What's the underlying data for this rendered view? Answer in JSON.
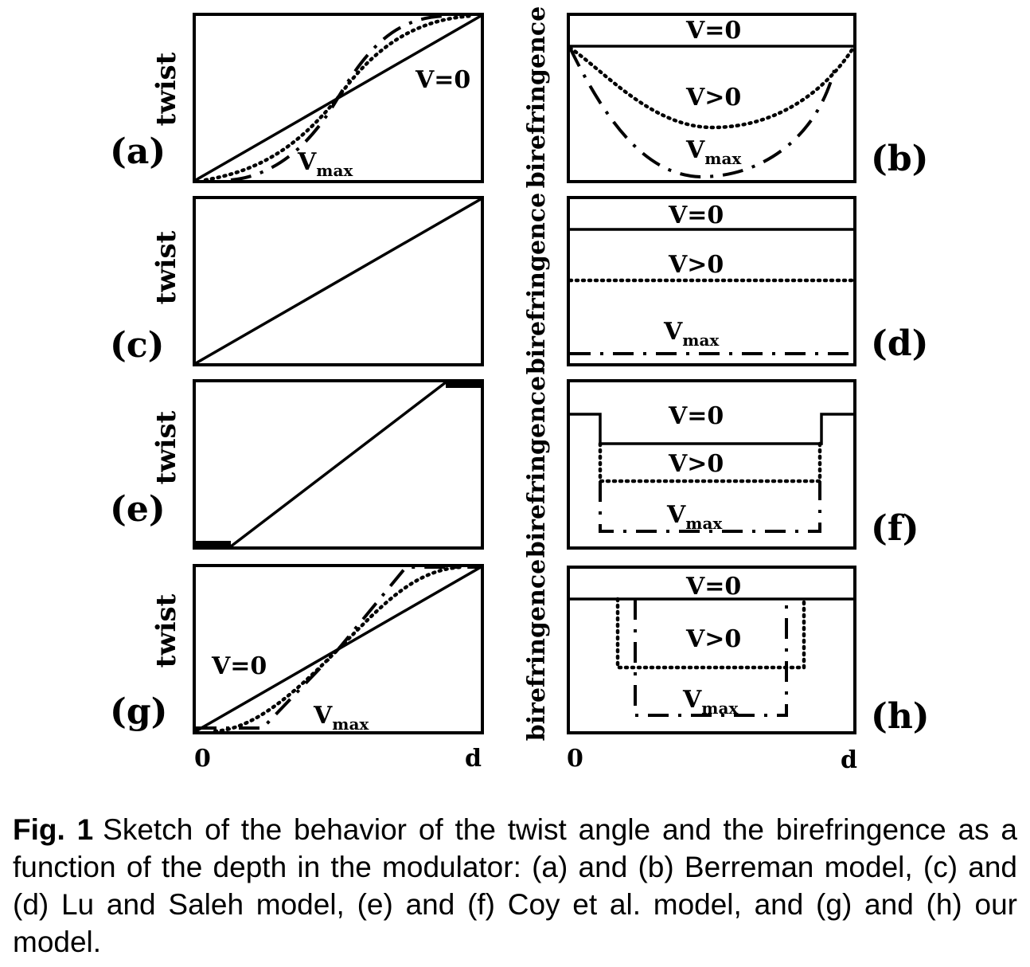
{
  "figure": {
    "ylabel_twist": "twist",
    "ylabel_birefringence": "birefringence",
    "x_start": "0",
    "x_end": "d",
    "curve_labels": {
      "v0": "V=0",
      "vpos": "V>0",
      "vmax_main": "V",
      "vmax_sub": "max"
    },
    "panels": {
      "a": "(a)",
      "b": "(b)",
      "c": "(c)",
      "d": "(d)",
      "e": "(e)",
      "f": "(f)",
      "g": "(g)",
      "h": "(h)"
    }
  },
  "caption": {
    "label": "Fig. 1",
    "text": "Sketch of the behavior of the twist angle and the birefringence as a function of the depth in the modulator: (a) and (b) Berreman model, (c) and (d) Lu and Saleh model, (e) and (f) Coy et al. model, and (g) and (h) our model."
  }
}
